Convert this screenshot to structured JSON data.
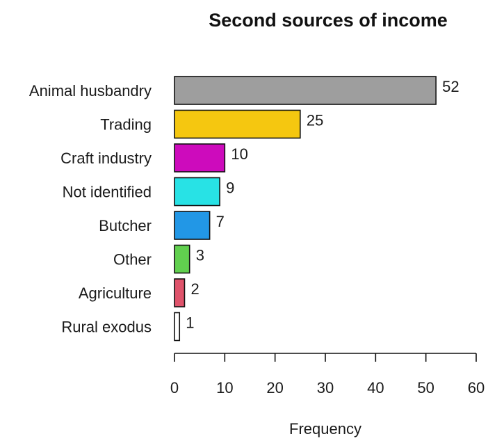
{
  "chart_data": {
    "type": "bar",
    "orientation": "horizontal",
    "title": "Second sources of income",
    "xlabel": "Frequency",
    "ylabel": "",
    "categories": [
      "Animal husbandry",
      "Trading",
      "Craft industry",
      "Not identified",
      "Butcher",
      "Other",
      "Agriculture",
      "Rural exodus"
    ],
    "values": [
      52,
      25,
      10,
      9,
      7,
      3,
      2,
      1
    ],
    "value_labels": [
      "52",
      "25",
      "10",
      "9",
      "7",
      "3",
      "2",
      "1"
    ],
    "colors": [
      "#9e9e9e",
      "#f5c710",
      "#cd0bbc",
      "#28e2e5",
      "#2297e6",
      "#61d04f",
      "#df536b",
      "#ffffff"
    ],
    "xlim": [
      0,
      60
    ],
    "xticks": [
      0,
      10,
      20,
      30,
      40,
      50,
      60
    ],
    "xtick_labels": [
      "0",
      "10",
      "20",
      "30",
      "40",
      "50",
      "60"
    ],
    "grid": false,
    "legend": "none"
  }
}
